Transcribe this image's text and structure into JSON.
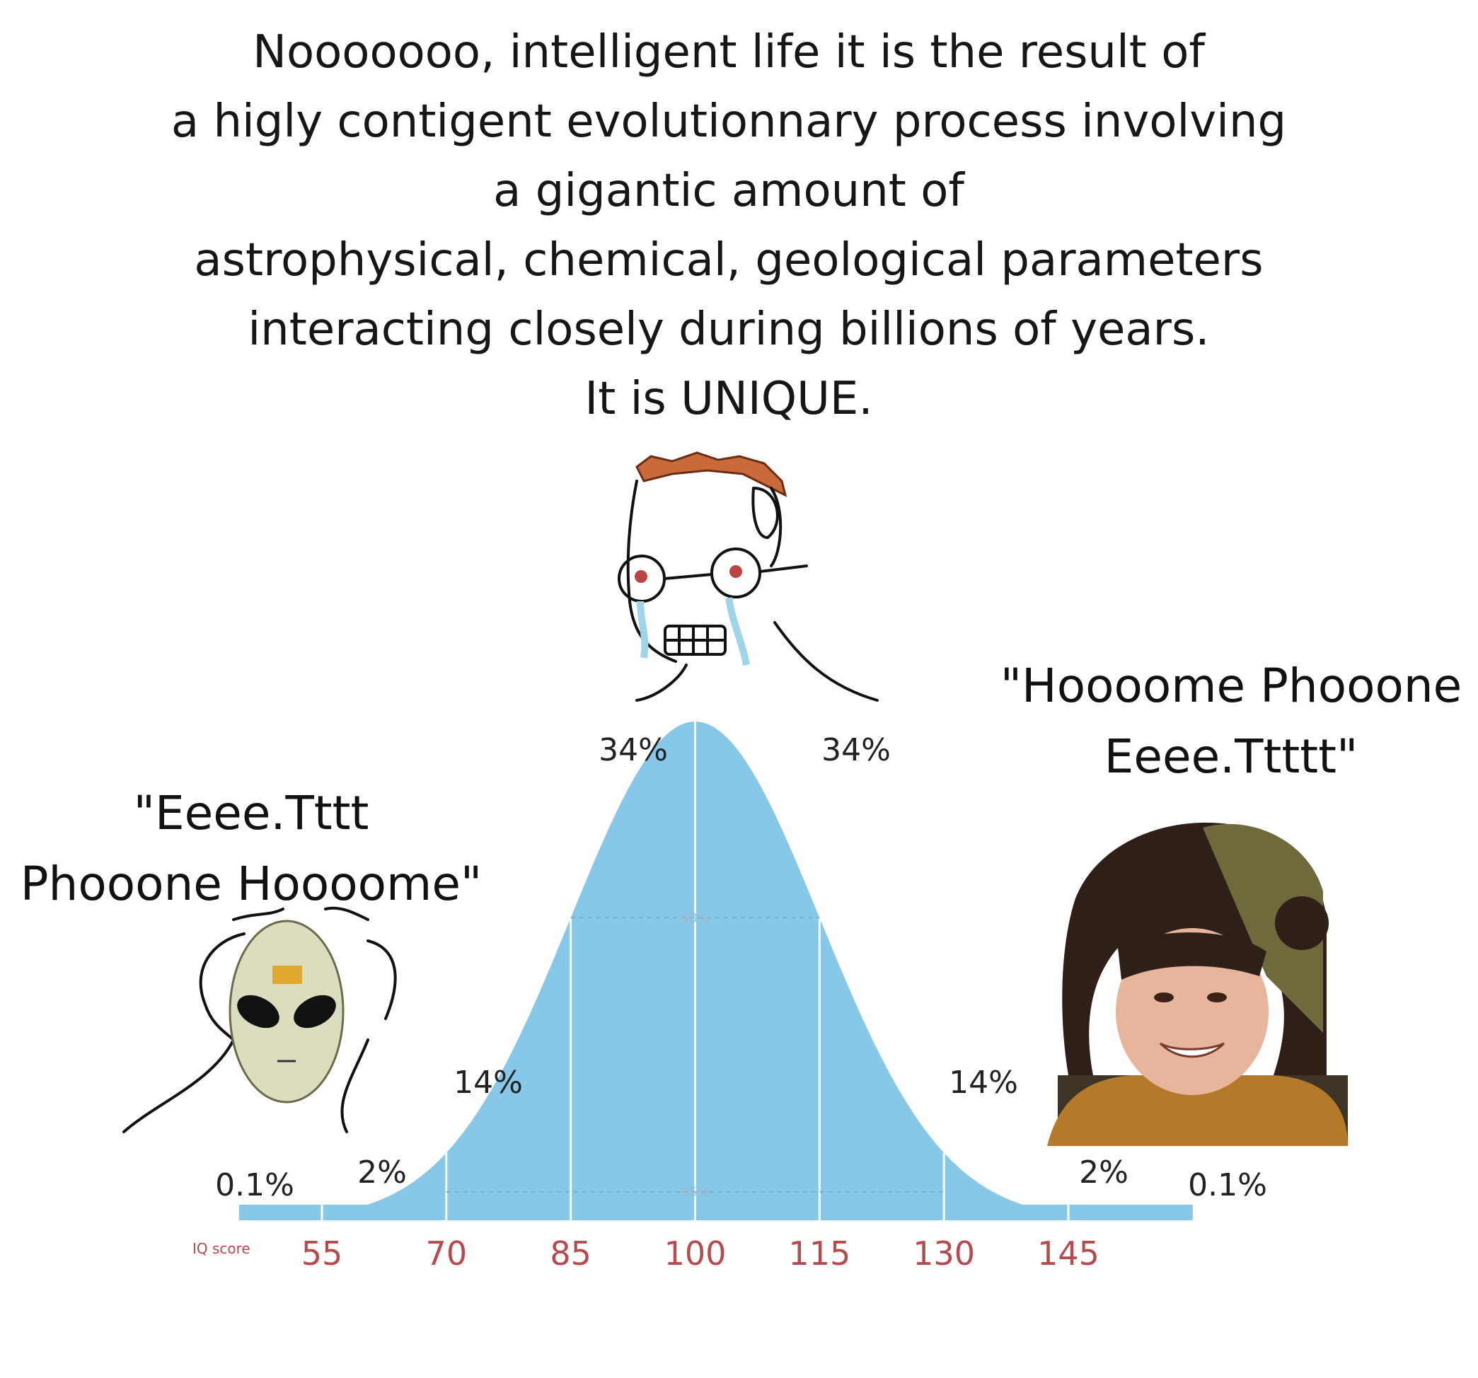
{
  "caption": {
    "lines": [
      "Nooooooo, intelligent life it is the result of",
      "a higly contigent evolutionnary process involving",
      "a gigantic amount of",
      "astrophysical, chemical, geological parameters",
      "interacting closely during billions of years.",
      "It is UNIQUE."
    ]
  },
  "quotes": {
    "left": [
      "\"Eeee.Tttt",
      "Phooone Hoooome\""
    ],
    "right": [
      "\"Hoooome Phooone",
      "Eeee.Ttttt\""
    ]
  },
  "colors": {
    "bell": "#87c8e8",
    "tick_text": "#b54a4f",
    "divider": "#ffffff"
  },
  "icons": {
    "left": "alien-mask-wojak-icon",
    "middle": "crying-glasses-wojak-icon",
    "right": "smiling-woman-fur-hat-icon"
  },
  "chart_data": {
    "type": "area",
    "distribution": "normal",
    "mean": 100,
    "sd": 15,
    "xlabel": "IQ score",
    "x_ticks": [
      "55",
      "70",
      "85",
      "100",
      "115",
      "130",
      "145"
    ],
    "xlim": [
      45,
      160
    ],
    "segments": [
      {
        "from": 45,
        "to": 55,
        "label": "0.1%"
      },
      {
        "from": 55,
        "to": 70,
        "label": "2%"
      },
      {
        "from": 70,
        "to": 85,
        "label": "14%"
      },
      {
        "from": 85,
        "to": 100,
        "label": "34%"
      },
      {
        "from": 100,
        "to": 115,
        "label": "34%"
      },
      {
        "from": 115,
        "to": 130,
        "label": "14%"
      },
      {
        "from": 130,
        "to": 145,
        "label": "2%"
      },
      {
        "from": 145,
        "to": 160,
        "label": "0.1%"
      }
    ],
    "bands": [
      {
        "from": 85,
        "to": 115,
        "label": "68%"
      },
      {
        "from": 70,
        "to": 130,
        "label": "95%"
      }
    ]
  }
}
